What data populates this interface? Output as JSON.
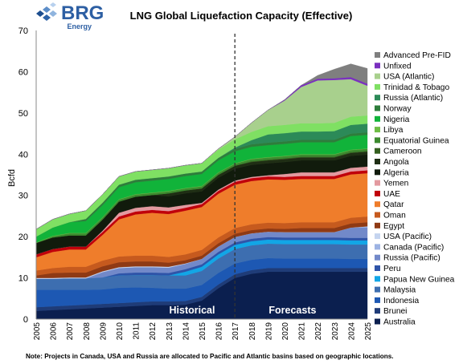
{
  "logo": {
    "main": "BRG",
    "sub": "Energy"
  },
  "note": "Note: Projects in Canada, USA and Russia are allocated to Pacific and Atlantic basins based on geographic locations.",
  "colors": {
    "Australia": "#0b1f4f",
    "Brunei": "#1f3c78",
    "Indonesia": "#1d58b3",
    "Malaysia": "#3d6eb0",
    "Papua New Guinea": "#12a6e6",
    "Peru": "#2f54a8",
    "Russia (Pacific)": "#7289c9",
    "Canada (Pacific)": "#9db3e3",
    "USA (Pacific)": "#c5d4ef",
    "Egypt": "#8f3a14",
    "Oman": "#c65a1e",
    "Qatar": "#ef7d2b",
    "UAE": "#c0000a",
    "Yemen": "#e39aa0",
    "Algeria": "#111b0c",
    "Angola": "#1f2e14",
    "Cameroon": "#355f20",
    "Equatorial Guinea": "#3c8a2f",
    "Libya": "#6ebd45",
    "Nigeria": "#11b33a",
    "Norway": "#2e7d3b",
    "Russia (Atlantic)": "#2c8a58",
    "Trinidad & Tobago": "#7fe063",
    "USA (Atlantic)": "#a8d08d",
    "Unfixed": "#7a2fbf",
    "Advanced Pre-FID": "#7f7f7f"
  },
  "chart_data": {
    "type": "area",
    "title": "LNG Global Liquefaction Capacity (Effective)",
    "xlabel": "",
    "ylabel": "Bcfd",
    "ylim": [
      0,
      70
    ],
    "yticks": [
      0,
      10,
      20,
      30,
      40,
      50,
      60,
      70
    ],
    "x": [
      "2005",
      "2006",
      "2007",
      "2008",
      "2009",
      "2010",
      "2011",
      "2012",
      "2013",
      "2014",
      "2015",
      "2016",
      "2017",
      "2018",
      "2019",
      "2020",
      "2021",
      "2022",
      "2023",
      "2024",
      "2025"
    ],
    "annotations": [
      {
        "text": "Historical",
        "x": "2015"
      },
      {
        "text": "Forecasts",
        "x": "2019"
      }
    ],
    "divider_x": "2017",
    "legend_position": "right",
    "legend_order": [
      "Advanced Pre-FID",
      "Unfixed",
      "USA (Atlantic)",
      "Trinidad & Tobago",
      "Russia (Atlantic)",
      "Norway",
      "Nigeria",
      "Libya",
      "Equatorial Guinea",
      "Cameroon",
      "Angola",
      "Algeria",
      "Yemen",
      "UAE",
      "Qatar",
      "Oman",
      "Egypt",
      "USA (Pacific)",
      "Canada (Pacific)",
      "Russia (Pacific)",
      "Peru",
      "Papua New Guinea",
      "Malaysia",
      "Indonesia",
      "Brunei",
      "Australia"
    ],
    "series": [
      {
        "name": "Australia",
        "values": [
          2.0,
          2.2,
          2.4,
          2.6,
          2.8,
          3.0,
          3.2,
          3.4,
          3.4,
          3.5,
          4.5,
          7.5,
          10.0,
          11.0,
          11.5,
          11.5,
          11.5,
          11.5,
          11.5,
          11.5,
          11.5
        ]
      },
      {
        "name": "Brunei",
        "values": [
          0.9,
          0.9,
          0.9,
          0.9,
          0.9,
          0.9,
          0.9,
          0.9,
          0.9,
          0.9,
          0.9,
          0.9,
          0.9,
          0.9,
          0.9,
          0.9,
          0.9,
          0.9,
          0.9,
          0.9,
          0.9
        ]
      },
      {
        "name": "Indonesia",
        "values": [
          4.2,
          4.0,
          3.8,
          3.6,
          3.5,
          3.7,
          3.6,
          3.3,
          3.1,
          3.0,
          2.9,
          2.8,
          2.6,
          2.5,
          2.4,
          2.3,
          2.3,
          2.3,
          2.3,
          2.2,
          2.2
        ]
      },
      {
        "name": "Malaysia",
        "values": [
          2.7,
          2.7,
          2.8,
          2.8,
          2.9,
          3.0,
          3.0,
          3.1,
          3.2,
          3.2,
          3.4,
          3.5,
          3.5,
          3.5,
          3.5,
          3.5,
          3.5,
          3.5,
          3.5,
          3.5,
          3.5
        ]
      },
      {
        "name": "Papua New Guinea",
        "values": [
          0,
          0,
          0,
          0,
          0,
          0,
          0,
          0,
          0,
          0.9,
          1.0,
          1.0,
          1.0,
          1.0,
          1.0,
          1.0,
          1.0,
          1.0,
          1.0,
          1.0,
          1.0
        ]
      },
      {
        "name": "Peru",
        "values": [
          0,
          0,
          0,
          0,
          0,
          0.5,
          0.6,
          0.6,
          0.6,
          0.6,
          0.6,
          0.6,
          0.6,
          0.6,
          0.6,
          0.6,
          0.6,
          0.6,
          0.6,
          0.6,
          0.6
        ]
      },
      {
        "name": "Russia (Pacific)",
        "values": [
          0,
          0,
          0,
          0,
          1.3,
          1.3,
          1.3,
          1.3,
          1.3,
          1.3,
          1.3,
          1.3,
          1.3,
          1.3,
          1.3,
          1.3,
          1.3,
          1.3,
          1.3,
          2.5,
          2.5
        ]
      },
      {
        "name": "Canada (Pacific)",
        "values": [
          0,
          0,
          0,
          0,
          0,
          0,
          0,
          0,
          0,
          0,
          0,
          0,
          0,
          0,
          0,
          0,
          0,
          0,
          0,
          0,
          0.3
        ]
      },
      {
        "name": "USA (Pacific)",
        "values": [
          0.2,
          0.2,
          0.2,
          0.2,
          0.2,
          0.2,
          0.2,
          0.2,
          0.2,
          0.1,
          0,
          0,
          0,
          0,
          0,
          0,
          0,
          0,
          0,
          0,
          0
        ]
      },
      {
        "name": "Egypt",
        "values": [
          0.6,
          1.2,
          1.2,
          1.2,
          1.2,
          1.2,
          1.2,
          1.2,
          1.0,
          0.8,
          0.8,
          0.8,
          0.8,
          0.8,
          0.8,
          0.8,
          1.0,
          1.0,
          1.0,
          1.0,
          1.0
        ]
      },
      {
        "name": "Oman",
        "values": [
          1.2,
          1.2,
          1.4,
          1.4,
          1.4,
          1.4,
          1.4,
          1.4,
          1.4,
          1.4,
          1.4,
          1.4,
          1.4,
          1.4,
          1.4,
          1.4,
          1.4,
          1.4,
          1.4,
          1.4,
          1.4
        ]
      },
      {
        "name": "Qatar",
        "values": [
          3.2,
          3.9,
          4.2,
          4.2,
          6.2,
          9.0,
          10.0,
          10.4,
          10.4,
          10.6,
          10.4,
          10.6,
          10.5,
          10.5,
          10.5,
          10.5,
          10.5,
          10.5,
          10.5,
          10.5,
          10.5
        ]
      },
      {
        "name": "UAE",
        "values": [
          0.7,
          0.7,
          0.7,
          0.7,
          0.7,
          0.7,
          0.7,
          0.7,
          0.7,
          0.7,
          0.7,
          0.7,
          0.7,
          0.7,
          0.7,
          0.7,
          0.7,
          0.7,
          0.7,
          0.7,
          0.7
        ]
      },
      {
        "name": "Yemen",
        "values": [
          0,
          0,
          0,
          0,
          0.3,
          0.9,
          0.9,
          0.9,
          0.9,
          0.7,
          0.3,
          0.3,
          0.3,
          0.3,
          0.3,
          0.7,
          0.9,
          0.9,
          0.9,
          0.9,
          0.9
        ]
      },
      {
        "name": "Algeria",
        "values": [
          2.8,
          2.8,
          2.7,
          2.7,
          2.7,
          2.7,
          2.7,
          2.7,
          2.7,
          2.8,
          2.8,
          2.9,
          2.9,
          2.9,
          2.9,
          2.9,
          2.9,
          2.9,
          2.9,
          2.9,
          2.9
        ]
      },
      {
        "name": "Angola",
        "values": [
          0,
          0,
          0,
          0,
          0,
          0,
          0,
          0,
          0.7,
          0.7,
          0.7,
          0.7,
          0.7,
          0.7,
          0.7,
          0.7,
          0.7,
          0.7,
          0.7,
          0.7,
          0.7
        ]
      },
      {
        "name": "Cameroon",
        "values": [
          0,
          0,
          0,
          0,
          0,
          0,
          0,
          0,
          0,
          0,
          0,
          0,
          0,
          0.2,
          0.2,
          0.2,
          0.2,
          0.2,
          0.2,
          0.2,
          0.2
        ]
      },
      {
        "name": "Equatorial Guinea",
        "values": [
          0,
          0.3,
          0.5,
          0.5,
          0.5,
          0.5,
          0.5,
          0.5,
          0.5,
          0.5,
          0.5,
          0.5,
          0.5,
          0.5,
          0.5,
          0.5,
          0.5,
          0.5,
          0.5,
          0.5,
          0.5
        ]
      },
      {
        "name": "Libya",
        "values": [
          0.1,
          0.1,
          0.1,
          0.1,
          0.1,
          0.1,
          0.1,
          0.1,
          0.1,
          0.1,
          0.1,
          0.1,
          0.1,
          0.1,
          0.1,
          0.1,
          0.1,
          0.1,
          0.1,
          0.1,
          0.1
        ]
      },
      {
        "name": "Nigeria",
        "values": [
          1.4,
          2.0,
          2.6,
          2.9,
          2.9,
          2.9,
          2.9,
          2.9,
          2.9,
          2.9,
          2.9,
          2.9,
          2.9,
          2.9,
          2.9,
          2.9,
          2.9,
          2.9,
          2.9,
          3.3,
          3.3
        ]
      },
      {
        "name": "Norway",
        "values": [
          0,
          0,
          0,
          0.5,
          0.6,
          0.6,
          0.6,
          0.6,
          0.6,
          0.6,
          0.6,
          0.6,
          0.6,
          0.6,
          0.6,
          0.6,
          0.6,
          0.6,
          0.6,
          0.6,
          0.6
        ]
      },
      {
        "name": "Russia (Atlantic)",
        "values": [
          0,
          0,
          0,
          0,
          0,
          0,
          0,
          0,
          0,
          0,
          0,
          0,
          0.3,
          1.0,
          2.0,
          2.0,
          2.0,
          2.0,
          2.1,
          2.1,
          2.1
        ]
      },
      {
        "name": "Trinidad & Tobago",
        "values": [
          1.8,
          2.0,
          2.0,
          2.0,
          2.0,
          2.0,
          2.0,
          2.0,
          2.0,
          2.0,
          2.0,
          2.0,
          2.0,
          2.0,
          2.0,
          2.0,
          2.0,
          2.0,
          2.0,
          2.0,
          2.0
        ]
      },
      {
        "name": "USA (Atlantic)",
        "values": [
          0,
          0,
          0,
          0,
          0,
          0,
          0,
          0,
          0,
          0,
          0,
          0.2,
          0.6,
          2.2,
          3.9,
          5.9,
          8.8,
          10.4,
          10.4,
          9.1,
          7.2
        ]
      },
      {
        "name": "Unfixed",
        "values": [
          0,
          0,
          0,
          0,
          0,
          0,
          0,
          0,
          0,
          0,
          0,
          0,
          0,
          0,
          0,
          0.2,
          0.4,
          0.4,
          0.4,
          0.5,
          0.5
        ]
      },
      {
        "name": "Advanced Pre-FID",
        "values": [
          0,
          0,
          0,
          0,
          0,
          0,
          0,
          0,
          0,
          0,
          0,
          0,
          0,
          0,
          0,
          0,
          0,
          0.8,
          2.2,
          3.2,
          3.7
        ]
      }
    ]
  }
}
